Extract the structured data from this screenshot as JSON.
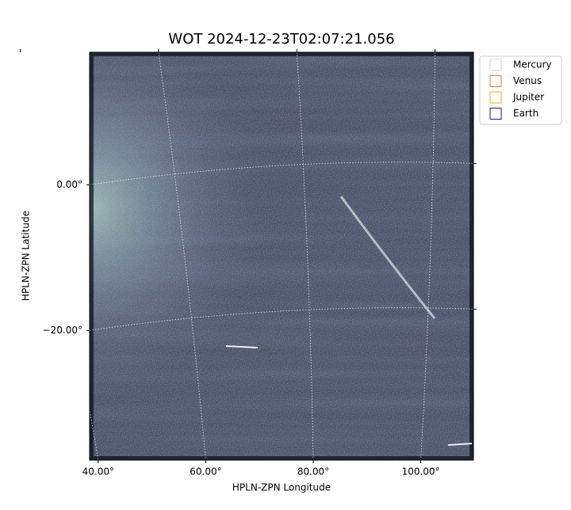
{
  "chart_data": {
    "type": "image",
    "title": "WOT 2024-12-23T02:07:21.056",
    "xlabel": "HPLN-ZPN Longitude",
    "ylabel": "HPLN-ZPN Latitude",
    "xlim": [
      38.4,
      109.8
    ],
    "ylim": [
      -37.8,
      18.2
    ],
    "xticks": [
      {
        "value": 40,
        "label": "40.00°"
      },
      {
        "value": 60,
        "label": "60.00°"
      },
      {
        "value": 80,
        "label": "80.00°"
      },
      {
        "value": 100,
        "label": "100.00°"
      }
    ],
    "yticks": [
      {
        "value": 0,
        "label": "0.00°"
      },
      {
        "value": -20,
        "label": "−20.00°"
      }
    ],
    "grid": true,
    "legend_position": "outside-upper-right",
    "legend": [
      {
        "name": "Mercury",
        "color": "#d9d9d9"
      },
      {
        "name": "Venus",
        "color": "#e07b39"
      },
      {
        "name": "Jupiter",
        "color": "#e8b020"
      },
      {
        "name": "Earth",
        "color": "#1a1a80"
      }
    ]
  }
}
